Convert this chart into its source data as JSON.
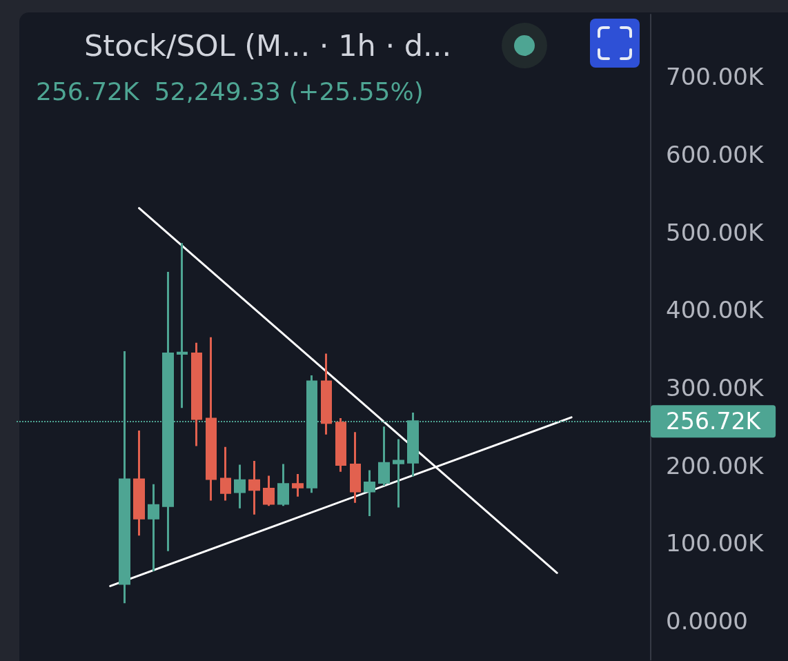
{
  "chart_data": {
    "type": "candlestick",
    "title": "Stock/SOL (M... · 1h · d...",
    "annotations": [
      "256.72K",
      "52,249.33 (+25.55%)"
    ],
    "categories": [
      null,
      null,
      null,
      null,
      null,
      null,
      null,
      null,
      null,
      null,
      null,
      null,
      null,
      null,
      null,
      null,
      null,
      null,
      null,
      null,
      null,
      null,
      null,
      null,
      null,
      null,
      null,
      null,
      null,
      null,
      null,
      null,
      null,
      null,
      null,
      null,
      null,
      null,
      null,
      null,
      null,
      null,
      null,
      null
    ],
    "ohlc": [
      null,
      null,
      null,
      null,
      null,
      null,
      null,
      [
        48000,
        347000,
        23000,
        182000
      ],
      [
        182000,
        245000,
        110000,
        132000
      ],
      [
        132000,
        176000,
        64000,
        149000
      ],
      [
        148000,
        449000,
        90000,
        344000
      ],
      [
        344000,
        486000,
        274000,
        345000
      ],
      [
        344000,
        358000,
        225000,
        260000
      ],
      [
        260000,
        365000,
        155000,
        183000
      ],
      [
        183000,
        224000,
        155000,
        165000
      ],
      [
        166000,
        201000,
        145000,
        181000
      ],
      [
        181000,
        206000,
        137000,
        169000
      ],
      [
        170000,
        187000,
        148000,
        151000
      ],
      [
        151000,
        202000,
        148000,
        176000
      ],
      [
        176000,
        189000,
        160000,
        172000
      ],
      [
        172000,
        316000,
        165000,
        308000
      ],
      [
        308000,
        344000,
        240000,
        255000
      ],
      [
        255000,
        261000,
        192000,
        201000
      ],
      [
        201000,
        243000,
        152000,
        167000
      ],
      [
        167000,
        194000,
        135000,
        178000
      ],
      [
        178000,
        250000,
        174000,
        203000
      ],
      [
        203000,
        234000,
        146000,
        206000
      ],
      [
        204000,
        268000,
        186000,
        256720
      ],
      null,
      null,
      null,
      null,
      null,
      null,
      null,
      null,
      null,
      null,
      null,
      null,
      null,
      null,
      null,
      null
    ],
    "colors": [
      null,
      null,
      null,
      null,
      null,
      null,
      null,
      "#4ea593",
      "#e2614f",
      "#4ea593",
      "#4ea593",
      "#4ea593",
      "#e2614f",
      "#e2614f",
      "#e2614f",
      "#4ea593",
      "#e2614f",
      "#e2614f",
      "#4ea593",
      "#e2614f",
      "#4ea593",
      "#e2614f",
      "#e2614f",
      "#e2614f",
      "#4ea593",
      "#4ea593",
      "#4ea593",
      "#4ea593",
      null,
      null,
      null,
      null,
      null,
      null,
      null,
      null,
      null,
      null,
      null,
      null,
      null,
      null,
      null,
      null
    ],
    "series": [
      {
        "type": "line",
        "color": "#ffffff",
        "values": [
          null,
          null,
          null,
          null,
          null,
          null,
          45000,
          null,
          null,
          null,
          null,
          null,
          null,
          null,
          null,
          null,
          null,
          null,
          null,
          null,
          null,
          null,
          null,
          null,
          null,
          null,
          null,
          null,
          null,
          null,
          null,
          null,
          null,
          null,
          null,
          null,
          null,
          null,
          262000,
          null,
          null,
          null,
          null,
          null
        ]
      },
      {
        "type": "line",
        "color": "#ffffff",
        "values": [
          null,
          null,
          null,
          null,
          null,
          null,
          null,
          null,
          531000,
          null,
          null,
          null,
          null,
          null,
          null,
          null,
          null,
          null,
          null,
          null,
          null,
          null,
          null,
          null,
          null,
          null,
          null,
          null,
          null,
          null,
          null,
          null,
          null,
          null,
          null,
          null,
          null,
          62000,
          null,
          null,
          null,
          null,
          null,
          null
        ]
      }
    ],
    "ylim": [
      -50000,
      780000
    ],
    "yticks": [
      {
        "value": 0,
        "label": "0.0000"
      },
      {
        "value": 100000,
        "label": "100.00K"
      },
      {
        "value": 200000,
        "label": "200.00K"
      },
      {
        "value": 300000,
        "label": "300.00K"
      },
      {
        "value": 400000,
        "label": "400.00K"
      },
      {
        "value": 500000,
        "label": "500.00K"
      },
      {
        "value": 600000,
        "label": "600.00K"
      },
      {
        "value": 700000,
        "label": "700.00K"
      }
    ],
    "ref_lines": [
      {
        "axis": "y",
        "value": 256720,
        "label": "256.72K",
        "color": "#4ea593",
        "line_style": "dotted"
      }
    ],
    "tick_labels": "y",
    "grid": false,
    "marker": "none"
  }
}
